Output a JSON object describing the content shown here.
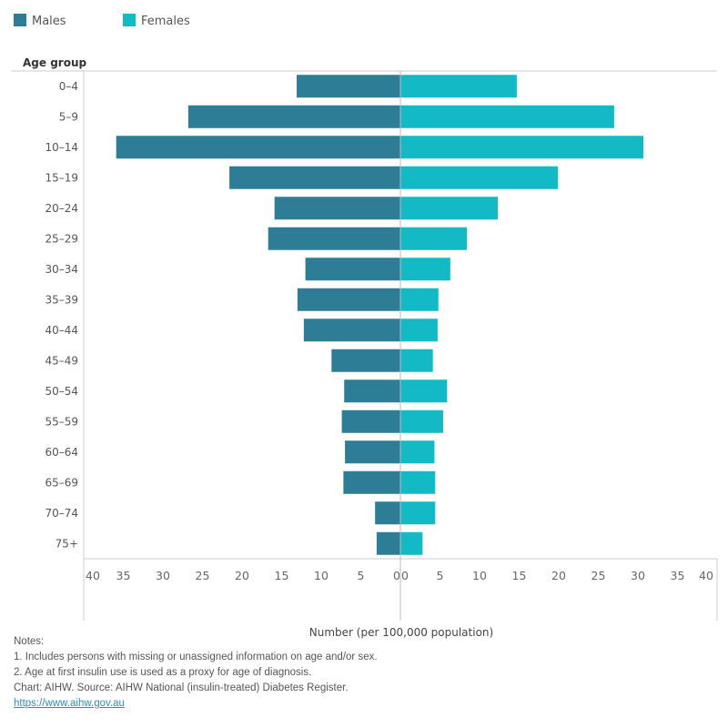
{
  "chart_data": {
    "type": "bar",
    "orientation": "horizontal-population-pyramid",
    "legend": {
      "placement": "top-left",
      "entries": [
        "Males",
        "Females"
      ]
    },
    "y_axis_title": "Age group",
    "xlabel": "Number (per 100,000 population)",
    "xlim": [
      0,
      40
    ],
    "x_ticks": [
      "0",
      "5",
      "10",
      "15",
      "20",
      "25",
      "30",
      "35",
      "40"
    ],
    "categories": [
      "0–4",
      "5–9",
      "10–14",
      "15–19",
      "20–24",
      "25–29",
      "30–34",
      "35–39",
      "40–44",
      "45–49",
      "50–54",
      "55–59",
      "60–64",
      "65–69",
      "70–74",
      "75+"
    ],
    "series": [
      {
        "name": "Males",
        "color": "#2e7d96",
        "side": "left",
        "values": [
          13.1,
          26.8,
          35.9,
          21.6,
          15.9,
          16.7,
          12.0,
          13.0,
          12.2,
          8.7,
          7.1,
          7.4,
          7.0,
          7.2,
          3.2,
          3.0
        ]
      },
      {
        "name": "Females",
        "color": "#14b9c6",
        "side": "right",
        "values": [
          14.7,
          27.0,
          30.7,
          19.9,
          12.3,
          8.4,
          6.3,
          4.8,
          4.7,
          4.1,
          5.9,
          5.4,
          4.3,
          4.4,
          4.4,
          2.8
        ]
      }
    ]
  },
  "notes": {
    "heading": "Notes:",
    "lines": [
      "1. Includes persons with missing or unassigned information on age and/or sex.",
      "2. Age at first insulin use is used as a proxy for age of diagnosis.",
      "Chart: AIHW.  Source: AIHW National (insulin-treated) Diabetes Register."
    ],
    "link": "https://www.aihw.gov.au"
  }
}
